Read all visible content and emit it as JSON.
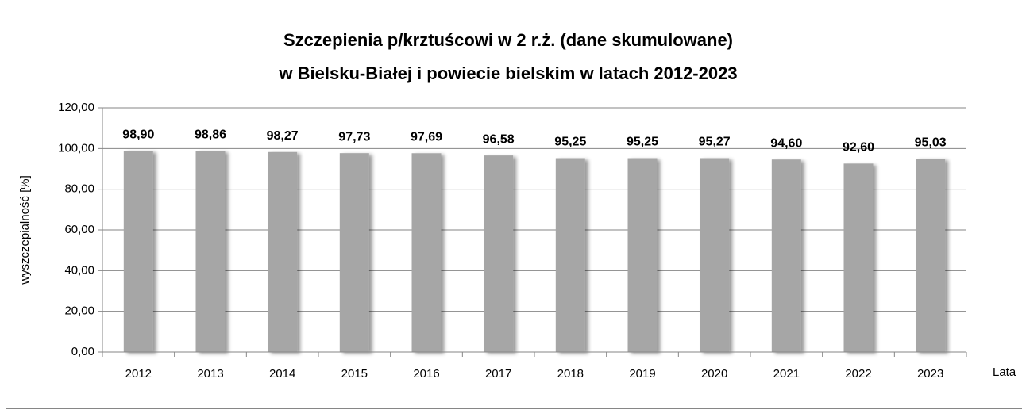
{
  "chart_data": {
    "type": "bar",
    "title": [
      "Szczepienia p/krztuścowi w 2 r.ż. (dane skumulowane)",
      "w Bielsku-Białej i powiecie bielskim w latach 2012-2023"
    ],
    "y_label": "wyszczepialność [%]",
    "x_label": "Lata",
    "categories": [
      "2012",
      "2013",
      "2014",
      "2015",
      "2016",
      "2017",
      "2018",
      "2019",
      "2020",
      "2021",
      "2022",
      "2023"
    ],
    "values": [
      98.9,
      98.86,
      98.27,
      97.73,
      97.69,
      96.58,
      95.25,
      95.25,
      95.27,
      94.6,
      92.6,
      95.03
    ],
    "value_labels": [
      "98,90",
      "98,86",
      "98,27",
      "97,73",
      "97,69",
      "96,58",
      "95,25",
      "95,25",
      "95,27",
      "94,60",
      "92,60",
      "95,03"
    ],
    "color": "#a6a6a6",
    "ylim": [
      0,
      120
    ],
    "yticks": [
      {
        "value": 0,
        "label": "0,00"
      },
      {
        "value": 20,
        "label": "20,00"
      },
      {
        "value": 40,
        "label": "40,00"
      },
      {
        "value": 60,
        "label": "60,00"
      },
      {
        "value": 80,
        "label": "80,00"
      },
      {
        "value": 100,
        "label": "100,00"
      },
      {
        "value": 120,
        "label": "120,00"
      }
    ],
    "grid": true
  }
}
